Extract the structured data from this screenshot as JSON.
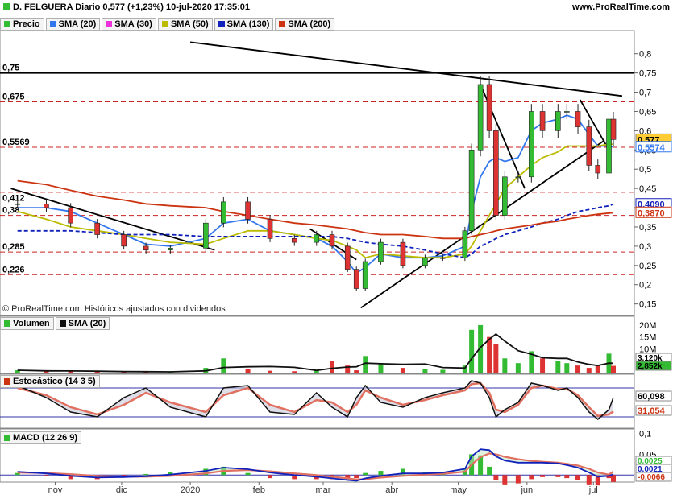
{
  "header": {
    "title": "D. FELGUERA Diario 0,577 (+1,23%) 10-jul-2020 17:35:01",
    "site": "www.ProRealTime.com",
    "credit": "© ProRealTime.com Históricos ajustados con dividendos"
  },
  "legend_price": [
    {
      "label": "Precio",
      "color": "#33bb33"
    },
    {
      "label": "SMA (20)",
      "color": "#3377ee"
    },
    {
      "label": "SMA (30)",
      "color": "#ee33dd"
    },
    {
      "label": "SMA (50)",
      "color": "#bbbb00"
    },
    {
      "label": "SMA (130)",
      "color": "#1122bb"
    },
    {
      "label": "SMA (200)",
      "color": "#cc3311"
    }
  ],
  "legend_volume": [
    {
      "label": "Volumen",
      "color": "#33bb33"
    },
    {
      "label": "SMA (20)",
      "color": "#111111"
    }
  ],
  "legend_stoch": [
    {
      "label": "Estocástico (14 3 5)",
      "color": "#cc3311"
    }
  ],
  "legend_macd": [
    {
      "label": "MACD (12 26 9)",
      "color": "#33bb33"
    }
  ],
  "colors": {
    "up": "#33bb33",
    "down": "#dd3333",
    "sma20": "#3377ee",
    "sma30": "#ee33dd",
    "sma50": "#bbbb00",
    "sma130": "#1122bb",
    "sma200": "#cc3311",
    "hline": "#cc2222",
    "panel_line": "#3333aa"
  },
  "chart_data": [
    {
      "type": "candlestick",
      "panel": "price",
      "title": "D. FELGUERA Diario",
      "ylim": [
        0.12,
        0.86
      ],
      "yticks": [
        "0,8",
        "0,75",
        "0,7",
        "0,65",
        "0,6",
        "0,55",
        "0,5",
        "0,45",
        "0,4",
        "0,35",
        "0,3",
        "0,25",
        "0,2",
        "0,15"
      ],
      "xticks": [
        "nov",
        "dic",
        "2020",
        "feb",
        "mar",
        "abr",
        "may",
        "jun",
        "jul"
      ],
      "horizontal_levels": [
        {
          "value": 0.75,
          "label": "0,75",
          "style": "solid"
        },
        {
          "value": 0.675,
          "label": "0,675",
          "style": "dashed"
        },
        {
          "value": 0.5569,
          "label": "0,5569",
          "style": "dashed"
        },
        {
          "value": 0.44,
          "label": "",
          "style": "dashed"
        },
        {
          "value": 0.38,
          "label": "0,38",
          "style": "dashed"
        },
        {
          "value": 0.285,
          "label": "0,285",
          "style": "dashed"
        },
        {
          "value": 0.226,
          "label": "0,226",
          "style": "dashed"
        }
      ],
      "left_labels": [
        "0,412"
      ],
      "price_badges": [
        {
          "label": "0,577",
          "value": 0.577,
          "bg": "#ffcc33"
        },
        {
          "label": "0,5574",
          "value": 0.5574,
          "color": "#3377ee"
        },
        {
          "label": "0,4090",
          "value": 0.409,
          "color": "#1122bb"
        },
        {
          "label": "0,3870",
          "value": 0.387,
          "color": "#cc3311"
        }
      ],
      "series": [
        {
          "name": "Precio",
          "x": [
            "2019-10-15",
            "2019-10-28",
            "2019-11-08",
            "2019-11-20",
            "2019-12-02",
            "2019-12-12",
            "2019-12-23",
            "2020-01-08",
            "2020-01-16",
            "2020-01-27",
            "2020-02-06",
            "2020-02-17",
            "2020-02-27",
            "2020-03-05",
            "2020-03-12",
            "2020-03-16",
            "2020-03-20",
            "2020-03-27",
            "2020-04-06",
            "2020-04-16",
            "2020-04-24",
            "2020-05-04",
            "2020-05-07",
            "2020-05-11",
            "2020-05-15",
            "2020-05-18",
            "2020-05-22",
            "2020-05-28",
            "2020-06-03",
            "2020-06-08",
            "2020-06-15",
            "2020-06-19",
            "2020-06-24",
            "2020-06-29",
            "2020-07-03",
            "2020-07-08",
            "2020-07-10"
          ],
          "close": [
            0.41,
            0.4,
            0.36,
            0.33,
            0.3,
            0.29,
            0.295,
            0.36,
            0.415,
            0.37,
            0.32,
            0.31,
            0.33,
            0.3,
            0.24,
            0.19,
            0.26,
            0.31,
            0.25,
            0.27,
            0.27,
            0.34,
            0.55,
            0.72,
            0.6,
            0.38,
            0.48,
            0.48,
            0.65,
            0.6,
            0.65,
            0.65,
            0.61,
            0.51,
            0.49,
            0.63,
            0.577
          ]
        },
        {
          "name": "SMA (20)",
          "values": [
            0.4,
            0.4,
            0.39,
            0.36,
            0.33,
            0.305,
            0.3,
            0.32,
            0.36,
            0.37,
            0.34,
            0.33,
            0.32,
            0.3,
            0.26,
            0.23,
            0.245,
            0.28,
            0.27,
            0.27,
            0.275,
            0.3,
            0.39,
            0.48,
            0.52,
            0.53,
            0.52,
            0.53,
            0.6,
            0.62,
            0.63,
            0.64,
            0.63,
            0.59,
            0.56,
            0.56,
            0.5574
          ]
        },
        {
          "name": "SMA (50)",
          "values": [
            0.39,
            0.37,
            0.35,
            0.34,
            0.33,
            0.32,
            0.31,
            0.305,
            0.32,
            0.34,
            0.34,
            0.33,
            0.32,
            0.315,
            0.3,
            0.29,
            0.27,
            0.28,
            0.275,
            0.27,
            0.27,
            0.28,
            0.3,
            0.34,
            0.38,
            0.41,
            0.45,
            0.48,
            0.51,
            0.53,
            0.545,
            0.56,
            0.56,
            0.56,
            0.56,
            0.565,
            0.565
          ]
        },
        {
          "name": "SMA (130)",
          "values": [
            0.34,
            0.34,
            0.34,
            0.335,
            0.33,
            0.33,
            0.33,
            0.325,
            0.325,
            0.325,
            0.325,
            0.325,
            0.325,
            0.325,
            0.32,
            0.315,
            0.31,
            0.305,
            0.3,
            0.29,
            0.28,
            0.27,
            0.28,
            0.3,
            0.31,
            0.32,
            0.33,
            0.34,
            0.35,
            0.36,
            0.37,
            0.38,
            0.39,
            0.395,
            0.4,
            0.405,
            0.409
          ]
        },
        {
          "name": "SMA (200)",
          "values": [
            0.47,
            0.46,
            0.445,
            0.43,
            0.42,
            0.41,
            0.405,
            0.4,
            0.39,
            0.38,
            0.37,
            0.36,
            0.355,
            0.35,
            0.345,
            0.34,
            0.335,
            0.33,
            0.33,
            0.325,
            0.32,
            0.32,
            0.325,
            0.33,
            0.335,
            0.34,
            0.345,
            0.35,
            0.355,
            0.36,
            0.365,
            0.37,
            0.375,
            0.38,
            0.383,
            0.386,
            0.387
          ]
        }
      ]
    },
    {
      "type": "bar",
      "panel": "volume",
      "yticks": [
        "20M",
        "15M",
        "10M"
      ],
      "badges": [
        {
          "label": "3,120k",
          "bg": "#ffffff"
        },
        {
          "label": "2,852k",
          "bg": "#33bb33"
        }
      ],
      "series": [
        {
          "name": "Volumen",
          "unit": "M",
          "values": [
            1,
            0.5,
            0.6,
            0.4,
            0.3,
            0.3,
            0.4,
            2,
            6,
            1.5,
            0.8,
            0.6,
            0.9,
            5,
            3,
            1,
            7,
            4,
            2,
            1.5,
            1.2,
            3,
            18,
            20,
            15,
            12,
            6,
            4,
            9,
            6,
            5,
            4,
            3,
            2,
            3,
            8,
            2.852
          ]
        }
      ]
    },
    {
      "type": "line",
      "panel": "stochastic",
      "title": "Estocástico (14 3 5)",
      "ylim": [
        0,
        100
      ],
      "levels": [
        80,
        20
      ],
      "badges": [
        {
          "label": "60,098",
          "value": 60.098
        },
        {
          "label": "31,054",
          "value": 31.054,
          "color": "#cc3311"
        }
      ],
      "series": [
        {
          "name": "%K",
          "values": [
            85,
            60,
            30,
            20,
            60,
            80,
            40,
            20,
            80,
            85,
            30,
            25,
            70,
            40,
            20,
            60,
            85,
            50,
            40,
            60,
            70,
            80,
            95,
            90,
            60,
            20,
            35,
            50,
            90,
            85,
            75,
            80,
            60,
            30,
            15,
            35,
            60.1
          ]
        },
        {
          "name": "%D",
          "values": [
            80,
            65,
            40,
            25,
            45,
            70,
            50,
            30,
            65,
            80,
            45,
            30,
            55,
            50,
            30,
            45,
            75,
            60,
            45,
            55,
            65,
            75,
            88,
            90,
            70,
            35,
            30,
            45,
            80,
            85,
            78,
            78,
            65,
            40,
            22,
            25,
            31.1
          ]
        }
      ]
    },
    {
      "type": "line",
      "panel": "macd",
      "title": "MACD (12 26 9)",
      "ylim": [
        -0.015,
        0.105
      ],
      "yticks": [
        "0,1",
        "0,05"
      ],
      "badges": [
        {
          "label": "0,0025",
          "color": "#33bb33"
        },
        {
          "label": "0,0021",
          "color": "#1122bb"
        },
        {
          "label": "-0,0066",
          "color": "#cc3311"
        }
      ],
      "series": [
        {
          "name": "MACD",
          "values": [
            0.008,
            0.004,
            -0.002,
            -0.006,
            -0.005,
            -0.003,
            0.001,
            0.01,
            0.018,
            0.014,
            0.006,
            0.0,
            -0.004,
            -0.008,
            -0.012,
            -0.014,
            -0.008,
            -0.002,
            0.004,
            0.004,
            0.006,
            0.015,
            0.045,
            0.062,
            0.06,
            0.045,
            0.035,
            0.03,
            0.03,
            0.03,
            0.028,
            0.024,
            0.018,
            0.006,
            -0.004,
            -0.002,
            0.0021
          ]
        },
        {
          "name": "Señal",
          "values": [
            0.006,
            0.005,
            0.002,
            -0.002,
            -0.004,
            -0.004,
            -0.002,
            0.004,
            0.01,
            0.012,
            0.009,
            0.004,
            0.0,
            -0.004,
            -0.008,
            -0.011,
            -0.01,
            -0.006,
            -0.002,
            0.001,
            0.003,
            0.008,
            0.025,
            0.043,
            0.052,
            0.05,
            0.044,
            0.038,
            0.034,
            0.032,
            0.03,
            0.027,
            0.023,
            0.015,
            0.006,
            0.001,
            0.0087
          ]
        },
        {
          "name": "Histograma",
          "values": [
            0.002,
            -0.001,
            -0.004,
            -0.004,
            -0.001,
            0.001,
            0.003,
            0.006,
            0.008,
            0.002,
            -0.003,
            -0.004,
            -0.004,
            -0.004,
            -0.004,
            -0.003,
            0.002,
            0.004,
            0.006,
            0.003,
            0.003,
            0.007,
            0.02,
            0.019,
            0.008,
            -0.005,
            -0.009,
            -0.008,
            -0.004,
            -0.002,
            -0.002,
            -0.003,
            -0.005,
            -0.009,
            -0.01,
            -0.003,
            -0.0066
          ]
        }
      ]
    }
  ]
}
